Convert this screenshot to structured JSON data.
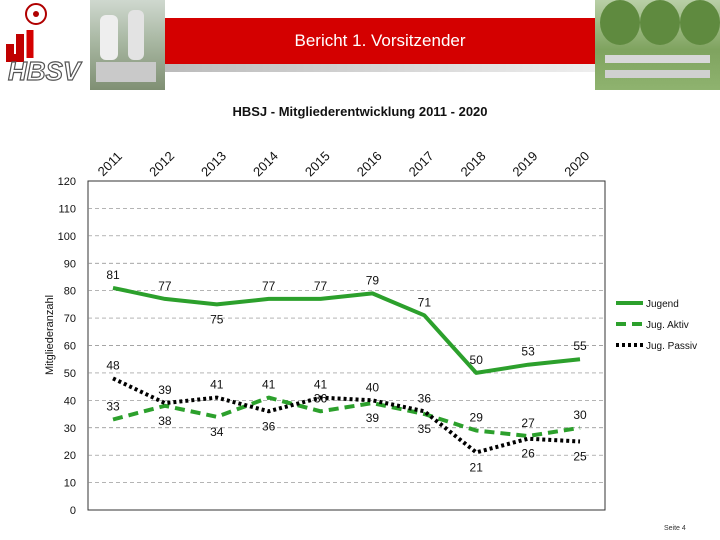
{
  "header": {
    "title": "Bericht 1. Vorsitzender",
    "logo_text": "HBSV"
  },
  "footer": {
    "page_label": "Seite 4"
  },
  "colors": {
    "banner": "#d40000",
    "series": "#2ca02c",
    "series_dashed": "#2ca02c",
    "series_dotted": "#000000"
  },
  "chart_data": {
    "type": "line",
    "title": "HBSJ - Mitgliederentwicklung 2011 - 2020",
    "ylabel": "Mitgliederanzahl",
    "xlabel": "",
    "categories": [
      "2011",
      "2012",
      "2013",
      "2014",
      "2015",
      "2016",
      "2017",
      "2018",
      "2019",
      "2020"
    ],
    "ylim": [
      0,
      120
    ],
    "yticks": [
      0,
      10,
      20,
      30,
      40,
      50,
      60,
      70,
      80,
      90,
      100,
      110,
      120
    ],
    "grid": true,
    "legend_position": "right",
    "series": [
      {
        "name": "Jugend",
        "values": [
          81,
          77,
          75,
          77,
          77,
          79,
          71,
          50,
          53,
          55
        ],
        "style": "solid",
        "color": "#2ca02c"
      },
      {
        "name": "Jug. Aktiv",
        "values": [
          33,
          38,
          34,
          41,
          36,
          39,
          35,
          29,
          27,
          30
        ],
        "style": "dashed",
        "color": "#2ca02c"
      },
      {
        "name": "Jug. Passiv",
        "values": [
          48,
          39,
          41,
          36,
          41,
          40,
          36,
          21,
          26,
          25
        ],
        "style": "dotted",
        "color": "#000000"
      }
    ]
  }
}
